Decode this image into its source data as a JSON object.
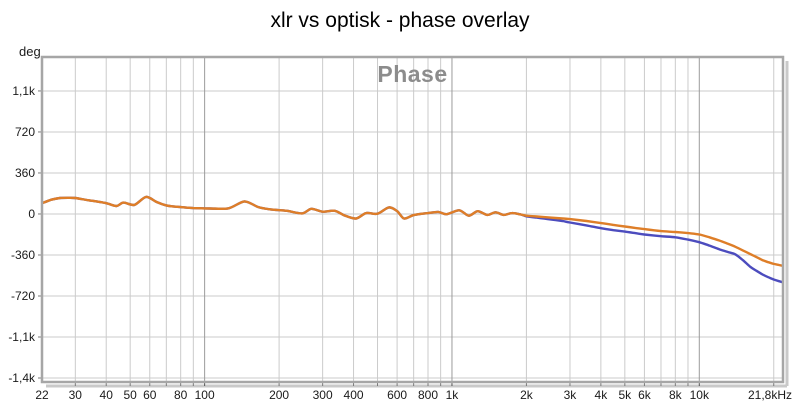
{
  "page": {
    "title": "xlr vs optisk - phase overlay"
  },
  "chart_data": {
    "type": "line",
    "title": "xlr vs optisk - phase overlay",
    "overlay_label": "Phase",
    "y_unit": "deg",
    "x_scale": "log",
    "xlim": [
      22,
      21800
    ],
    "ylim": [
      -1475,
      1378
    ],
    "grid": true,
    "legend": "none",
    "x_ticks": [
      {
        "f": 22,
        "label": "22"
      },
      {
        "f": 30,
        "label": "30"
      },
      {
        "f": 40,
        "label": "40"
      },
      {
        "f": 50,
        "label": "50"
      },
      {
        "f": 60,
        "label": "60"
      },
      {
        "f": 80,
        "label": "80"
      },
      {
        "f": 100,
        "label": "100"
      },
      {
        "f": 200,
        "label": "200"
      },
      {
        "f": 300,
        "label": "300"
      },
      {
        "f": 400,
        "label": "400"
      },
      {
        "f": 600,
        "label": "600"
      },
      {
        "f": 800,
        "label": "800"
      },
      {
        "f": 1000,
        "label": "1k"
      },
      {
        "f": 2000,
        "label": "2k"
      },
      {
        "f": 3000,
        "label": "3k"
      },
      {
        "f": 4000,
        "label": "4k"
      },
      {
        "f": 5000,
        "label": "5k"
      },
      {
        "f": 6000,
        "label": "6k"
      },
      {
        "f": 8000,
        "label": "8k"
      },
      {
        "f": 10000,
        "label": "10k"
      },
      {
        "f": 21800,
        "label": "21,8kHz"
      }
    ],
    "x_gridlines_minor": [
      30,
      40,
      50,
      60,
      70,
      80,
      90,
      200,
      300,
      400,
      500,
      600,
      700,
      800,
      900,
      2000,
      3000,
      4000,
      5000,
      6000,
      7000,
      8000,
      9000,
      20000
    ],
    "x_gridlines_decade": [
      100,
      1000,
      10000
    ],
    "y_ticks": [
      {
        "v": 1080,
        "label": "1,1k"
      },
      {
        "v": 720,
        "label": "720"
      },
      {
        "v": 360,
        "label": "360"
      },
      {
        "v": 0,
        "label": "0"
      },
      {
        "v": -360,
        "label": "-360"
      },
      {
        "v": -720,
        "label": "-720"
      },
      {
        "v": -1080,
        "label": "-1,1k"
      },
      {
        "v": -1440,
        "label": "-1,4k"
      }
    ],
    "colors": {
      "orange_series": "#de7e28",
      "blue_series": "#4c4cbe",
      "grid_minor": "#cbcbcb",
      "grid_decade": "#9b9b9b",
      "plot_border": "#a6a6a6",
      "overlay_label": "#8c8c8c",
      "tick_text": "#1a1a1a"
    },
    "series": [
      {
        "name": "blue",
        "color": "#4c4cbe",
        "points": [
          [
            22,
            95
          ],
          [
            24,
            125
          ],
          [
            26,
            140
          ],
          [
            28,
            142
          ],
          [
            30,
            140
          ],
          [
            34,
            120
          ],
          [
            40,
            95
          ],
          [
            44,
            70
          ],
          [
            47,
            100
          ],
          [
            52,
            80
          ],
          [
            58,
            150
          ],
          [
            64,
            105
          ],
          [
            70,
            75
          ],
          [
            80,
            60
          ],
          [
            90,
            52
          ],
          [
            105,
            48
          ],
          [
            125,
            50
          ],
          [
            145,
            110
          ],
          [
            165,
            60
          ],
          [
            185,
            40
          ],
          [
            215,
            28
          ],
          [
            248,
            5
          ],
          [
            270,
            45
          ],
          [
            300,
            20
          ],
          [
            336,
            28
          ],
          [
            370,
            -15
          ],
          [
            410,
            -40
          ],
          [
            450,
            8
          ],
          [
            500,
            2
          ],
          [
            556,
            58
          ],
          [
            600,
            25
          ],
          [
            640,
            -40
          ],
          [
            700,
            -10
          ],
          [
            800,
            8
          ],
          [
            880,
            18
          ],
          [
            950,
            -2
          ],
          [
            1070,
            32
          ],
          [
            1170,
            -15
          ],
          [
            1270,
            24
          ],
          [
            1390,
            -8
          ],
          [
            1500,
            15
          ],
          [
            1620,
            -8
          ],
          [
            1750,
            8
          ],
          [
            1900,
            -5
          ],
          [
            2000,
            -20
          ],
          [
            2200,
            -32
          ],
          [
            2500,
            -48
          ],
          [
            2800,
            -62
          ],
          [
            3000,
            -75
          ],
          [
            3500,
            -100
          ],
          [
            4000,
            -125
          ],
          [
            4500,
            -142
          ],
          [
            5000,
            -155
          ],
          [
            5500,
            -168
          ],
          [
            6000,
            -180
          ],
          [
            7000,
            -195
          ],
          [
            8000,
            -205
          ],
          [
            9000,
            -225
          ],
          [
            10000,
            -248
          ],
          [
            11000,
            -278
          ],
          [
            12000,
            -308
          ],
          [
            13000,
            -333
          ],
          [
            14000,
            -355
          ],
          [
            15000,
            -405
          ],
          [
            16000,
            -460
          ],
          [
            17000,
            -498
          ],
          [
            18000,
            -530
          ],
          [
            19000,
            -555
          ],
          [
            20000,
            -575
          ],
          [
            21000,
            -590
          ],
          [
            21800,
            -600
          ]
        ]
      },
      {
        "name": "orange",
        "color": "#de7e28",
        "points": [
          [
            22,
            95
          ],
          [
            24,
            125
          ],
          [
            26,
            140
          ],
          [
            28,
            142
          ],
          [
            30,
            140
          ],
          [
            34,
            120
          ],
          [
            40,
            95
          ],
          [
            44,
            70
          ],
          [
            47,
            100
          ],
          [
            52,
            80
          ],
          [
            58,
            150
          ],
          [
            64,
            105
          ],
          [
            70,
            75
          ],
          [
            80,
            60
          ],
          [
            90,
            52
          ],
          [
            105,
            48
          ],
          [
            125,
            50
          ],
          [
            145,
            110
          ],
          [
            165,
            60
          ],
          [
            185,
            40
          ],
          [
            215,
            28
          ],
          [
            248,
            5
          ],
          [
            270,
            45
          ],
          [
            300,
            20
          ],
          [
            336,
            28
          ],
          [
            370,
            -15
          ],
          [
            410,
            -40
          ],
          [
            450,
            8
          ],
          [
            500,
            2
          ],
          [
            556,
            58
          ],
          [
            600,
            25
          ],
          [
            640,
            -40
          ],
          [
            700,
            -10
          ],
          [
            800,
            8
          ],
          [
            880,
            18
          ],
          [
            950,
            -2
          ],
          [
            1070,
            32
          ],
          [
            1170,
            -15
          ],
          [
            1270,
            24
          ],
          [
            1390,
            -8
          ],
          [
            1500,
            15
          ],
          [
            1620,
            -8
          ],
          [
            1750,
            8
          ],
          [
            1900,
            -5
          ],
          [
            2000,
            -15
          ],
          [
            2200,
            -22
          ],
          [
            2500,
            -32
          ],
          [
            2800,
            -40
          ],
          [
            3000,
            -45
          ],
          [
            3500,
            -62
          ],
          [
            4000,
            -80
          ],
          [
            4500,
            -96
          ],
          [
            5000,
            -110
          ],
          [
            5500,
            -122
          ],
          [
            6000,
            -133
          ],
          [
            7000,
            -150
          ],
          [
            8000,
            -158
          ],
          [
            9000,
            -168
          ],
          [
            10000,
            -180
          ],
          [
            11000,
            -205
          ],
          [
            12000,
            -232
          ],
          [
            13000,
            -260
          ],
          [
            14000,
            -288
          ],
          [
            15000,
            -320
          ],
          [
            16000,
            -350
          ],
          [
            17000,
            -378
          ],
          [
            18000,
            -405
          ],
          [
            19000,
            -423
          ],
          [
            20000,
            -438
          ],
          [
            21000,
            -448
          ],
          [
            21800,
            -455
          ]
        ]
      }
    ]
  }
}
